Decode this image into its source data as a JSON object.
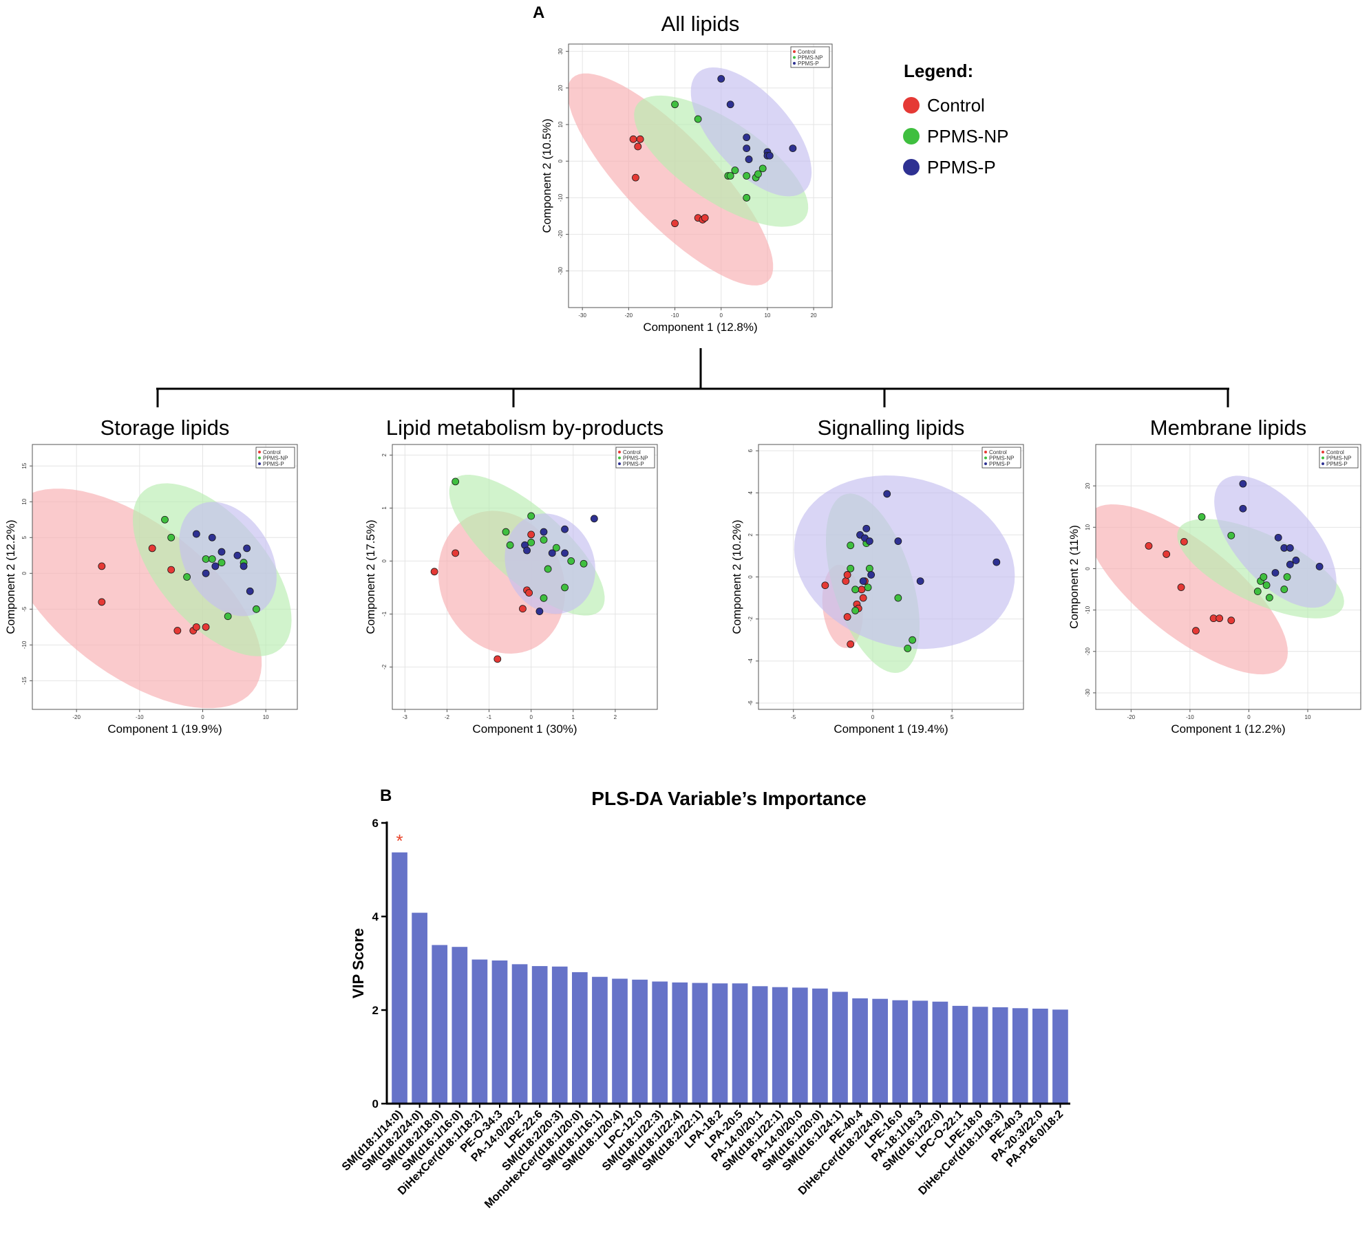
{
  "panel_labels": {
    "a": "A",
    "b": "B"
  },
  "colors": {
    "control": "#e53935",
    "ppms_np": "#3fbf3f",
    "ppms_p": "#2e3192",
    "ellipse_control": "#f8aeb0",
    "ellipse_np": "#b8ecb0",
    "ellipse_p": "#c4bff0",
    "bar": "#6673c8"
  },
  "big_legend": {
    "title": "Legend:",
    "items": [
      {
        "label": "Control",
        "color": "#e53935"
      },
      {
        "label": "PPMS-NP",
        "color": "#3fbf3f"
      },
      {
        "label": "PPMS-P",
        "color": "#2e3192"
      }
    ]
  },
  "chart_data": [
    {
      "id": "all",
      "type": "scatter",
      "title": "All lipids",
      "xlabel": "Component 1 (12.8%)",
      "ylabel": "Component 2 (10.5%)",
      "xlim": [
        -33,
        24
      ],
      "ylim": [
        -40,
        32
      ],
      "xticks": [
        -30,
        -20,
        -10,
        0,
        10,
        20
      ],
      "yticks": [
        -30,
        -20,
        -10,
        0,
        10,
        20,
        30
      ],
      "legend": [
        "Control",
        "PPMS-NP",
        "PPMS-P"
      ],
      "legend_position": "top-right",
      "series": [
        {
          "name": "Control",
          "points": [
            [
              -19,
              6
            ],
            [
              -17.5,
              6
            ],
            [
              -18,
              4
            ],
            [
              -18.5,
              -4.5
            ],
            [
              -10,
              -17
            ],
            [
              -5,
              -15.5
            ],
            [
              -4,
              -16
            ],
            [
              -3.5,
              -15.5
            ]
          ],
          "ellipse": {
            "cx": -11,
            "cy": -5,
            "rx": 35,
            "ry": 10.5,
            "angle": -54
          }
        },
        {
          "name": "PPMS-NP",
          "points": [
            [
              -10,
              15.5
            ],
            [
              -5,
              11.5
            ],
            [
              1.5,
              -4
            ],
            [
              2,
              -4
            ],
            [
              3,
              -2.5
            ],
            [
              5.5,
              -4
            ],
            [
              5.5,
              -10
            ],
            [
              7.5,
              -4.5
            ],
            [
              8,
              -3.5
            ],
            [
              9,
              -2
            ]
          ],
          "ellipse": {
            "cx": 0,
            "cy": 0,
            "rx": 24,
            "ry": 10,
            "angle": -43
          }
        },
        {
          "name": "PPMS-P",
          "points": [
            [
              0,
              22.5
            ],
            [
              2,
              15.5
            ],
            [
              5.5,
              6.5
            ],
            [
              5.5,
              3.5
            ],
            [
              6,
              0.5
            ],
            [
              10,
              2.5
            ],
            [
              10,
              1.5
            ],
            [
              10.5,
              1.5
            ],
            [
              15.5,
              3.5
            ]
          ],
          "ellipse": {
            "cx": 6.5,
            "cy": 8,
            "rx": 20,
            "ry": 9,
            "angle": -58
          }
        }
      ]
    },
    {
      "id": "storage",
      "type": "scatter",
      "title": "Storage lipids",
      "xlabel": "Component 1 (19.9%)",
      "ylabel": "Component 2 (12.2%)",
      "xlim": [
        -27,
        15
      ],
      "ylim": [
        -19,
        18
      ],
      "xticks": [
        -20,
        -10,
        0,
        10
      ],
      "yticks": [
        -15,
        -10,
        -5,
        0,
        5,
        10,
        15
      ],
      "legend": [
        "Control",
        "PPMS-NP",
        "PPMS-P"
      ],
      "legend_position": "top-right",
      "series": [
        {
          "name": "Control",
          "points": [
            [
              -16,
              1
            ],
            [
              -16,
              -4
            ],
            [
              -8,
              3.5
            ],
            [
              -5,
              0.5
            ],
            [
              -4,
              -8
            ],
            [
              -1.5,
              -8
            ],
            [
              -1,
              -7.5
            ],
            [
              0.5,
              -7.5
            ]
          ],
          "ellipse": {
            "cx": -11,
            "cy": -3.5,
            "rx": 23,
            "ry": 11,
            "angle": -32
          }
        },
        {
          "name": "PPMS-NP",
          "points": [
            [
              -6,
              7.5
            ],
            [
              -5,
              5
            ],
            [
              -2.5,
              -0.5
            ],
            [
              0.5,
              2
            ],
            [
              1.5,
              2
            ],
            [
              3,
              1.5
            ],
            [
              4,
              -6
            ],
            [
              6.5,
              1.5
            ],
            [
              8.5,
              -5
            ]
          ],
          "ellipse": {
            "cx": 1.5,
            "cy": 0.5,
            "rx": 15.5,
            "ry": 8,
            "angle": -43
          }
        },
        {
          "name": "PPMS-P",
          "points": [
            [
              -1,
              5.5
            ],
            [
              1.5,
              5
            ],
            [
              0.5,
              0
            ],
            [
              2,
              1
            ],
            [
              3,
              3
            ],
            [
              5.5,
              2.5
            ],
            [
              6.5,
              1
            ],
            [
              7,
              3.5
            ],
            [
              7.5,
              -2.5
            ]
          ],
          "ellipse": {
            "cx": 4,
            "cy": 2,
            "rx": 9,
            "ry": 6.5,
            "angle": -48
          }
        }
      ]
    },
    {
      "id": "metabolism",
      "type": "scatter",
      "title": "Lipid metabolism by-products",
      "xlabel": "Component 1 (30%)",
      "ylabel": "Component 2 (17.5%)",
      "xlim": [
        -3.3,
        3.0
      ],
      "ylim": [
        -2.8,
        2.2
      ],
      "xticks": [
        -3,
        -2,
        -1,
        0,
        1,
        2
      ],
      "yticks": [
        -2,
        -1,
        0,
        1,
        2
      ],
      "legend": [
        "Control",
        "PPMS-NP",
        "PPMS-P"
      ],
      "legend_position": "top-right",
      "series": [
        {
          "name": "Control",
          "points": [
            [
              -2.3,
              -0.2
            ],
            [
              -1.8,
              0.15
            ],
            [
              -0.8,
              -1.85
            ],
            [
              -0.2,
              -0.9
            ],
            [
              0,
              0.5
            ],
            [
              -0.1,
              -0.55
            ],
            [
              -0.05,
              -0.6
            ]
          ],
          "ellipse": {
            "cx": -0.7,
            "cy": -0.4,
            "rx": 1.55,
            "ry": 1.3,
            "angle": -25
          }
        },
        {
          "name": "PPMS-NP",
          "points": [
            [
              -1.8,
              1.5
            ],
            [
              -0.6,
              0.55
            ],
            [
              -0.5,
              0.3
            ],
            [
              0,
              0.35
            ],
            [
              0,
              0.85
            ],
            [
              0.3,
              0.4
            ],
            [
              0.4,
              -0.15
            ],
            [
              0.6,
              0.25
            ],
            [
              0.8,
              -0.5
            ],
            [
              0.95,
              0
            ],
            [
              1.25,
              -0.05
            ],
            [
              0.3,
              -0.7
            ]
          ],
          "ellipse": {
            "cx": -0.1,
            "cy": 0.3,
            "rx": 2.15,
            "ry": 0.75,
            "angle": -33
          }
        },
        {
          "name": "PPMS-P",
          "points": [
            [
              0.8,
              0.6
            ],
            [
              1.5,
              0.8
            ],
            [
              0.3,
              0.55
            ],
            [
              0.5,
              0.15
            ],
            [
              -0.15,
              0.3
            ],
            [
              -0.1,
              0.2
            ],
            [
              0.8,
              0.15
            ],
            [
              0.2,
              -0.95
            ]
          ],
          "ellipse": {
            "cx": 0.45,
            "cy": -0.05,
            "rx": 1.1,
            "ry": 0.92,
            "angle": -22
          }
        }
      ]
    },
    {
      "id": "signalling",
      "type": "scatter",
      "title": "Signalling lipids",
      "xlabel": "Component 1 (19.4%)",
      "ylabel": "Component 2 (10.2%)",
      "xlim": [
        -7.2,
        9.5
      ],
      "ylim": [
        -6.3,
        6.3
      ],
      "xticks": [
        -5,
        0,
        5
      ],
      "yticks": [
        -6,
        -4,
        -2,
        0,
        2,
        4,
        6
      ],
      "legend": [
        "Control",
        "PPMS-NP",
        "PPMS-P"
      ],
      "legend_position": "top-right",
      "series": [
        {
          "name": "Control",
          "points": [
            [
              -3,
              -0.4
            ],
            [
              -1.7,
              -0.2
            ],
            [
              -1.6,
              0.1
            ],
            [
              -1.6,
              -1.9
            ],
            [
              -1.4,
              -3.2
            ],
            [
              -1.0,
              -1.3
            ],
            [
              -0.9,
              -1.5
            ],
            [
              -0.7,
              -0.6
            ],
            [
              -0.6,
              -1.0
            ],
            [
              -0.5,
              -0.2
            ]
          ],
          "ellipse": {
            "cx": -1.9,
            "cy": -1.4,
            "rx": 2.0,
            "ry": 1.25,
            "angle": -80
          }
        },
        {
          "name": "PPMS-NP",
          "points": [
            [
              -1.4,
              1.5
            ],
            [
              -1.4,
              0.4
            ],
            [
              -1.1,
              -0.6
            ],
            [
              -1.1,
              -1.6
            ],
            [
              -0.4,
              1.6
            ],
            [
              -0.3,
              -0.5
            ],
            [
              -0.2,
              0.4
            ],
            [
              1.6,
              -1.0
            ],
            [
              2.2,
              -3.4
            ],
            [
              2.5,
              -3.0
            ]
          ],
          "ellipse": {
            "cx": 0,
            "cy": -0.3,
            "rx": 4.6,
            "ry": 2.4,
            "angle": -64
          }
        },
        {
          "name": "PPMS-P",
          "points": [
            [
              0.9,
              3.95
            ],
            [
              -0.8,
              2.0
            ],
            [
              -0.5,
              1.85
            ],
            [
              -0.4,
              2.3
            ],
            [
              -0.2,
              1.7
            ],
            [
              1.6,
              1.7
            ],
            [
              -0.1,
              0.1
            ],
            [
              -0.6,
              -0.2
            ],
            [
              3.0,
              -0.2
            ],
            [
              7.8,
              0.7
            ]
          ],
          "ellipse": {
            "cx": 2.0,
            "cy": 0.7,
            "rx": 7.0,
            "ry": 4.05,
            "angle": -8
          }
        }
      ]
    },
    {
      "id": "membrane",
      "type": "scatter",
      "title": "Membrane lipids",
      "xlabel": "Component 1 (12.2%)",
      "ylabel": "Component 2 (11%)",
      "xlim": [
        -26,
        19
      ],
      "ylim": [
        -34,
        30
      ],
      "xticks": [
        -20,
        -10,
        0,
        10
      ],
      "yticks": [
        -30,
        -20,
        -10,
        0,
        10,
        20
      ],
      "legend": [
        "Control",
        "PPMS-NP",
        "PPMS-P"
      ],
      "legend_position": "top-right",
      "series": [
        {
          "name": "Control",
          "points": [
            [
              -17,
              5.5
            ],
            [
              -14,
              3.5
            ],
            [
              -11,
              6.5
            ],
            [
              -11.5,
              -4.5
            ],
            [
              -9,
              -15
            ],
            [
              -6,
              -12
            ],
            [
              -5,
              -12
            ],
            [
              -3,
              -12.5
            ]
          ],
          "ellipse": {
            "cx": -10.5,
            "cy": -5,
            "rx": 25,
            "ry": 9.5,
            "angle": -52
          }
        },
        {
          "name": "PPMS-NP",
          "points": [
            [
              -8,
              12.5
            ],
            [
              -3,
              8
            ],
            [
              1.5,
              -5.5
            ],
            [
              2,
              -3
            ],
            [
              2.5,
              -2
            ],
            [
              3,
              -4
            ],
            [
              3.5,
              -7
            ],
            [
              6,
              -5
            ],
            [
              6.5,
              -2
            ]
          ],
          "ellipse": {
            "cx": 2,
            "cy": 0,
            "rx": 17,
            "ry": 7.5,
            "angle": -38
          }
        },
        {
          "name": "PPMS-P",
          "points": [
            [
              -1,
              20.5
            ],
            [
              -1,
              14.5
            ],
            [
              5,
              7.5
            ],
            [
              6,
              5
            ],
            [
              7,
              5
            ],
            [
              7,
              1
            ],
            [
              8,
              2
            ],
            [
              4.5,
              -1
            ],
            [
              12,
              0.5
            ]
          ],
          "ellipse": {
            "cx": 4.5,
            "cy": 6.5,
            "rx": 17.5,
            "ry": 7.5,
            "angle": -63
          }
        }
      ]
    },
    {
      "id": "vip",
      "type": "bar",
      "title": "PLS-DA Variable’s Importance",
      "xlabel": "",
      "ylabel": "VIP Score",
      "ylim": [
        0,
        6
      ],
      "yticks": [
        0,
        2,
        4,
        6
      ],
      "annotation": {
        "label": "*",
        "category_index": 0
      },
      "categories": [
        "SM(d18:1/14:0)",
        "SM(d18:2/24:0)",
        "SM(d18:2/18:0)",
        "SM(d16:1/16:0)",
        "DiHexCer(d18:1/18:2)",
        "PE-O-34:3",
        "PA-14:0/20:2",
        "LPE-22:6",
        "SM(d18:2/20:3)",
        "MonoHexCer(d18:1/20:0)",
        "SM(d18:1/16:1)",
        "SM(d18:1/20:4)",
        "LPC-12:0",
        "SM(d18:1/22:3)",
        "SM(d18:1/22:4)",
        "SM(d18:2/22:1)",
        "LPA-18:2",
        "LPA-20:5",
        "PA-14:0/20:1",
        "SM(d18:1/22:1)",
        "PA-14:0/20:0",
        "SM(d16:1/20:0)",
        "SM(d16:1/24:1)",
        "PE-40:4",
        "DiHexCer(d18:2/24:0)",
        "LPE-16:0",
        "PA-18:1/18:3",
        "SM(d16:1/22:0)",
        "LPC-O-22:1",
        "LPE-18:0",
        "DiHexCer(d18:1/18:3)",
        "PE-40:3",
        "PA-20:3/22:0",
        "PA-P16:0/18:2"
      ],
      "values": [
        5.37,
        4.08,
        3.39,
        3.35,
        3.08,
        3.06,
        2.98,
        2.94,
        2.93,
        2.81,
        2.71,
        2.67,
        2.65,
        2.61,
        2.59,
        2.58,
        2.57,
        2.57,
        2.51,
        2.49,
        2.48,
        2.46,
        2.39,
        2.25,
        2.24,
        2.21,
        2.2,
        2.18,
        2.09,
        2.07,
        2.06,
        2.04,
        2.03,
        2.01
      ]
    }
  ]
}
